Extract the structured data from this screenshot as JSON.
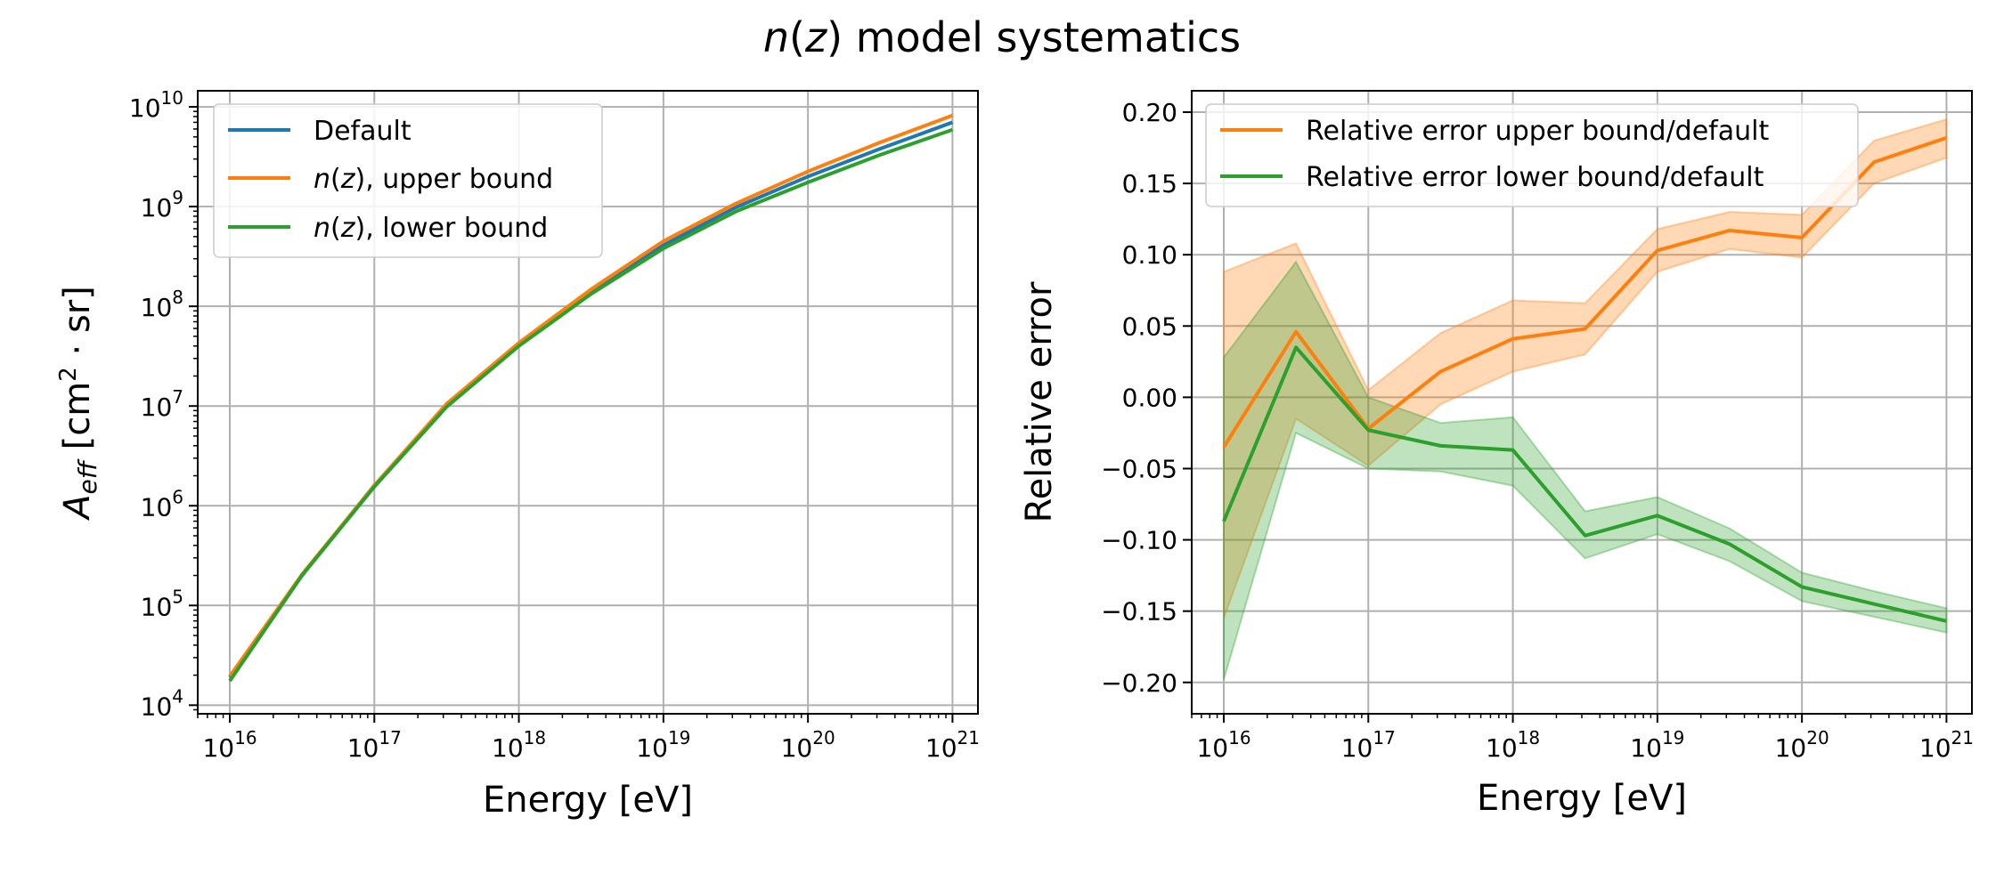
{
  "figure": {
    "title_italic": "n",
    "title_paren_open": "(",
    "title_var": "z",
    "title_rest": ") model systematics"
  },
  "chart_data": [
    {
      "type": "line",
      "xlabel": "Energy [eV]",
      "ylabel": "A_eff [cm² · sr]",
      "ylabel_main": "A",
      "ylabel_sub": "eff",
      "ylabel_unit_open": " [cm",
      "ylabel_unit_exp": "2",
      "ylabel_unit_close": " · sr]",
      "x_scale": "log",
      "y_scale": "log",
      "xlim": [
        6000000000000000.0,
        1.5e+21
      ],
      "ylim": [
        8200.0,
        14500000000.0
      ],
      "grid": true,
      "legend_position": "top-left",
      "x_ticks": [
        {
          "base": "10",
          "exp": "16",
          "value": 1e+16
        },
        {
          "base": "10",
          "exp": "17",
          "value": 1e+17
        },
        {
          "base": "10",
          "exp": "18",
          "value": 1e+18
        },
        {
          "base": "10",
          "exp": "19",
          "value": 1e+19
        },
        {
          "base": "10",
          "exp": "20",
          "value": 1e+20
        },
        {
          "base": "10",
          "exp": "21",
          "value": 1e+21
        }
      ],
      "y_ticks": [
        {
          "base": "10",
          "exp": "4",
          "value": 10000.0
        },
        {
          "base": "10",
          "exp": "5",
          "value": 100000.0
        },
        {
          "base": "10",
          "exp": "6",
          "value": 1000000.0
        },
        {
          "base": "10",
          "exp": "7",
          "value": 10000000.0
        },
        {
          "base": "10",
          "exp": "8",
          "value": 100000000.0
        },
        {
          "base": "10",
          "exp": "9",
          "value": 1000000000.0
        },
        {
          "base": "10",
          "exp": "10",
          "value": 10000000000.0
        }
      ],
      "x": [
        1e+16,
        3.16e+16,
        1e+17,
        3.16e+17,
        1e+18,
        3.16e+18,
        1e+19,
        3.16e+19,
        1e+20,
        3.16e+20,
        1e+21
      ],
      "series": [
        {
          "name": "Default",
          "label_plain": "Default",
          "color": "#1f77b4",
          "values": [
            19000.0,
            200000.0,
            1600000.0,
            10000000.0,
            42000000.0,
            140000000.0,
            410000000.0,
            980000000.0,
            2000000000.0,
            3800000000.0,
            7000000000.0
          ]
        },
        {
          "name": "n(z), upper bound",
          "label_var": "n",
          "label_arg": "z",
          "label_rest": ", upper bound",
          "color": "#ff7f0e",
          "values": [
            19500.0,
            205000.0,
            1600000.0,
            10500000.0,
            43000000.0,
            148000000.0,
            450000000.0,
            1070000000.0,
            2250000000.0,
            4400000000.0,
            8200000000.0
          ]
        },
        {
          "name": "n(z), lower bound",
          "label_var": "n",
          "label_arg": "z",
          "label_rest": ", lower bound",
          "color": "#2ca02c",
          "values": [
            17500.0,
            200000.0,
            1550000.0,
            9800000.0,
            40000000.0,
            133000000.0,
            380000000.0,
            890000000.0,
            1750000000.0,
            3300000000.0,
            5900000000.0
          ]
        }
      ]
    },
    {
      "type": "line",
      "xlabel": "Energy [eV]",
      "ylabel": "Relative error",
      "x_scale": "log",
      "y_scale": "linear",
      "xlim": [
        6000000000000000.0,
        1.5e+21
      ],
      "ylim": [
        -0.222,
        0.215
      ],
      "grid": true,
      "legend_position": "top",
      "x_ticks": [
        {
          "base": "10",
          "exp": "16",
          "value": 1e+16
        },
        {
          "base": "10",
          "exp": "17",
          "value": 1e+17
        },
        {
          "base": "10",
          "exp": "18",
          "value": 1e+18
        },
        {
          "base": "10",
          "exp": "19",
          "value": 1e+19
        },
        {
          "base": "10",
          "exp": "20",
          "value": 1e+20
        },
        {
          "base": "10",
          "exp": "21",
          "value": 1e+21
        }
      ],
      "y_ticks": [
        {
          "label": "0.20",
          "value": 0.2
        },
        {
          "label": "0.15",
          "value": 0.15
        },
        {
          "label": "0.10",
          "value": 0.1
        },
        {
          "label": "0.05",
          "value": 0.05
        },
        {
          "label": "0.00",
          "value": 0.0
        },
        {
          "label": "−0.05",
          "value": -0.05
        },
        {
          "label": "−0.10",
          "value": -0.1
        },
        {
          "label": "−0.15",
          "value": -0.15
        },
        {
          "label": "−0.20",
          "value": -0.2
        }
      ],
      "x": [
        1e+16,
        3.16e+16,
        1e+17,
        3.16e+17,
        1e+18,
        3.16e+18,
        1e+19,
        3.16e+19,
        1e+20,
        3.16e+20,
        1e+21
      ],
      "series": [
        {
          "name": "Relative error upper bound/default",
          "color": "#ff7f0e",
          "values": [
            -0.035,
            0.046,
            -0.022,
            0.018,
            0.041,
            0.048,
            0.103,
            0.117,
            0.112,
            0.165,
            0.182
          ],
          "band_upper": [
            0.088,
            0.108,
            0.005,
            0.045,
            0.068,
            0.066,
            0.118,
            0.13,
            0.128,
            0.18,
            0.195
          ],
          "band_lower": [
            -0.155,
            -0.015,
            -0.048,
            -0.005,
            0.018,
            0.03,
            0.088,
            0.104,
            0.098,
            0.15,
            0.168
          ]
        },
        {
          "name": "Relative error lower bound/default",
          "color": "#2ca02c",
          "values": [
            -0.087,
            0.035,
            -0.023,
            -0.034,
            -0.037,
            -0.097,
            -0.083,
            -0.103,
            -0.133,
            -0.145,
            -0.157
          ],
          "band_upper": [
            0.028,
            0.095,
            0.0,
            -0.018,
            -0.014,
            -0.08,
            -0.07,
            -0.092,
            -0.123,
            -0.136,
            -0.148
          ],
          "band_lower": [
            -0.198,
            -0.025,
            -0.05,
            -0.052,
            -0.062,
            -0.113,
            -0.096,
            -0.115,
            -0.143,
            -0.154,
            -0.165
          ]
        }
      ]
    }
  ]
}
